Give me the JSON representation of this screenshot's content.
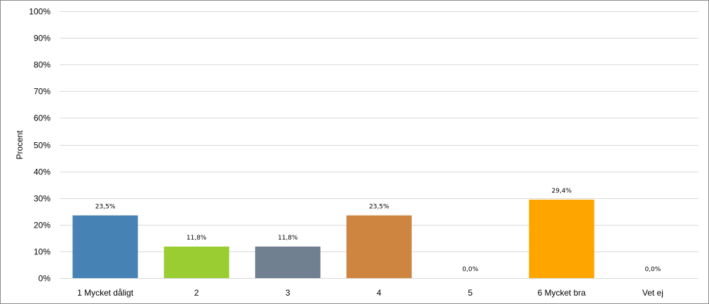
{
  "chart_data": {
    "type": "bar",
    "title": "",
    "xlabel": "",
    "ylabel": "Procent",
    "ylim": [
      0,
      100
    ],
    "yticks": [
      0,
      10,
      20,
      30,
      40,
      50,
      60,
      70,
      80,
      90,
      100
    ],
    "ytick_labels": [
      "0%",
      "10%",
      "20%",
      "30%",
      "40%",
      "50%",
      "60%",
      "70%",
      "80%",
      "90%",
      "100%"
    ],
    "grid": true,
    "legend": "none",
    "categories": [
      "1 Mycket dåligt",
      "2",
      "3",
      "4",
      "5",
      "6 Mycket bra",
      "Vet ej"
    ],
    "values": [
      23.5,
      11.8,
      11.8,
      23.5,
      0.0,
      29.4,
      0.0
    ],
    "data_labels": [
      "23,5%",
      "11,8%",
      "11,8%",
      "23,5%",
      "0,0%",
      "29,4%",
      "0,0%"
    ],
    "colors": [
      "#4682B4",
      "#9ACD32",
      "#708090",
      "#CD853F",
      "#CCCCCC",
      "#FFA500",
      "#DDDDDD"
    ],
    "gridline_color": "#D9D9D9"
  }
}
